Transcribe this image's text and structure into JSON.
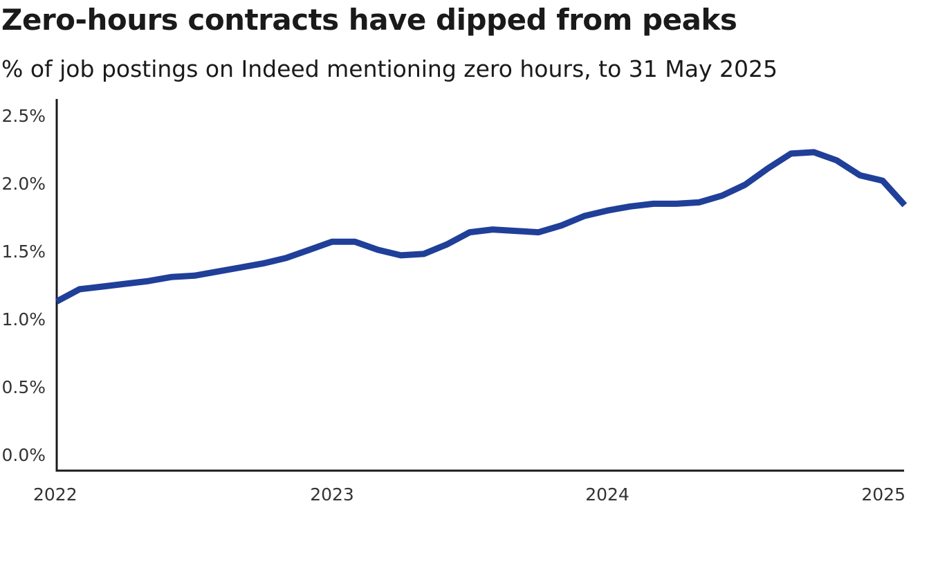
{
  "chart_data": {
    "type": "line",
    "title": "Zero-hours contracts have dipped from peaks",
    "subtitle": "% of job postings on Indeed mentioning zero hours, to 31 May 2025",
    "xlabel": "",
    "ylabel": "",
    "x_ticks": [
      {
        "label": "2022",
        "value": 2022.0
      },
      {
        "label": "2023",
        "value": 2023.0
      },
      {
        "label": "2024",
        "value": 2024.0
      },
      {
        "label": "2025",
        "value": 2025.0
      }
    ],
    "y_ticks": [
      {
        "label": "0.0%",
        "value": 0.0
      },
      {
        "label": "0.5%",
        "value": 0.5
      },
      {
        "label": "1.0%",
        "value": 1.0
      },
      {
        "label": "1.5%",
        "value": 1.5
      },
      {
        "label": "2.0%",
        "value": 2.0
      },
      {
        "label": "2.5%",
        "value": 2.5
      }
    ],
    "xlim": [
      2022.0,
      2025.08
    ],
    "ylim": [
      0,
      2.6
    ],
    "grid": false,
    "series": [
      {
        "color": "#1f3f99",
        "x": [
          2022.0,
          2022.083,
          2022.167,
          2022.25,
          2022.333,
          2022.417,
          2022.5,
          2022.583,
          2022.667,
          2022.75,
          2022.833,
          2022.917,
          2023.0,
          2023.083,
          2023.167,
          2023.25,
          2023.333,
          2023.417,
          2023.5,
          2023.583,
          2023.667,
          2023.75,
          2023.833,
          2023.917,
          2024.0,
          2024.083,
          2024.167,
          2024.25,
          2024.333,
          2024.417,
          2024.5,
          2024.583,
          2024.667,
          2024.75,
          2024.833,
          2024.917,
          2025.0,
          2025.08
        ],
        "y": [
          1.13,
          1.22,
          1.24,
          1.26,
          1.28,
          1.31,
          1.32,
          1.35,
          1.38,
          1.41,
          1.45,
          1.51,
          1.57,
          1.57,
          1.51,
          1.47,
          1.48,
          1.55,
          1.64,
          1.66,
          1.65,
          1.64,
          1.69,
          1.76,
          1.8,
          1.83,
          1.85,
          1.85,
          1.86,
          1.91,
          1.99,
          2.11,
          2.22,
          2.23,
          2.17,
          2.06,
          2.02,
          1.84
        ]
      }
    ]
  }
}
